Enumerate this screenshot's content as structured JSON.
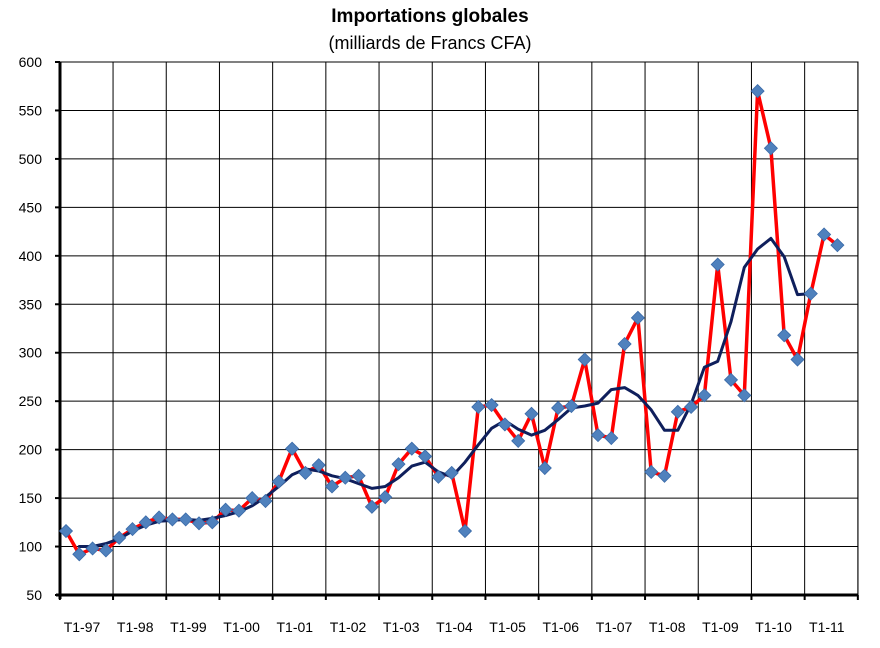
{
  "chart_data": {
    "type": "line",
    "title": "Importations globales",
    "subtitle": "(milliards de Francs CFA)",
    "xlabel": "",
    "ylabel": "",
    "ylim": [
      50,
      600
    ],
    "yticks": [
      50,
      100,
      150,
      200,
      250,
      300,
      350,
      400,
      450,
      500,
      550,
      600
    ],
    "grid": true,
    "legend": "none",
    "x_tick_labels": [
      "T1-97",
      "T1-98",
      "T1-99",
      "T1-00",
      "T1-01",
      "T1-02",
      "T1-03",
      "T1-04",
      "T1-05",
      "T1-06",
      "T1-07",
      "T1-08",
      "T1-09",
      "T1-10",
      "T1-11"
    ],
    "periods_per_year": 4,
    "series": [
      {
        "color": "#ff0000",
        "marker": "diamond",
        "marker_color": "#4f81bd",
        "values": [
          116,
          92,
          98,
          96,
          109,
          118,
          125,
          130,
          128,
          128,
          124,
          125,
          138,
          137,
          150,
          147,
          167,
          201,
          176,
          184,
          162,
          171,
          173,
          141,
          151,
          185,
          201,
          193,
          172,
          176,
          116,
          244,
          246,
          226,
          209,
          237,
          181,
          243,
          245,
          293,
          215,
          212,
          309,
          336,
          177,
          173,
          239,
          244,
          256,
          391,
          272,
          256,
          570,
          511,
          318,
          293,
          361,
          422,
          411
        ]
      },
      {
        "color": "#0f1f5c",
        "values": [
          null,
          100,
          100,
          103,
          108,
          116,
          122,
          126,
          127,
          128,
          127,
          129,
          132,
          136,
          142,
          151,
          162,
          174,
          180,
          178,
          173,
          170,
          165,
          160,
          162,
          171,
          183,
          187,
          177,
          172,
          187,
          205,
          222,
          230,
          221,
          215,
          220,
          231,
          243,
          245,
          248,
          262,
          264,
          256,
          241,
          220,
          220,
          247,
          285,
          291,
          332,
          388,
          407,
          418,
          399,
          360,
          361,
          null,
          null
        ]
      }
    ]
  }
}
